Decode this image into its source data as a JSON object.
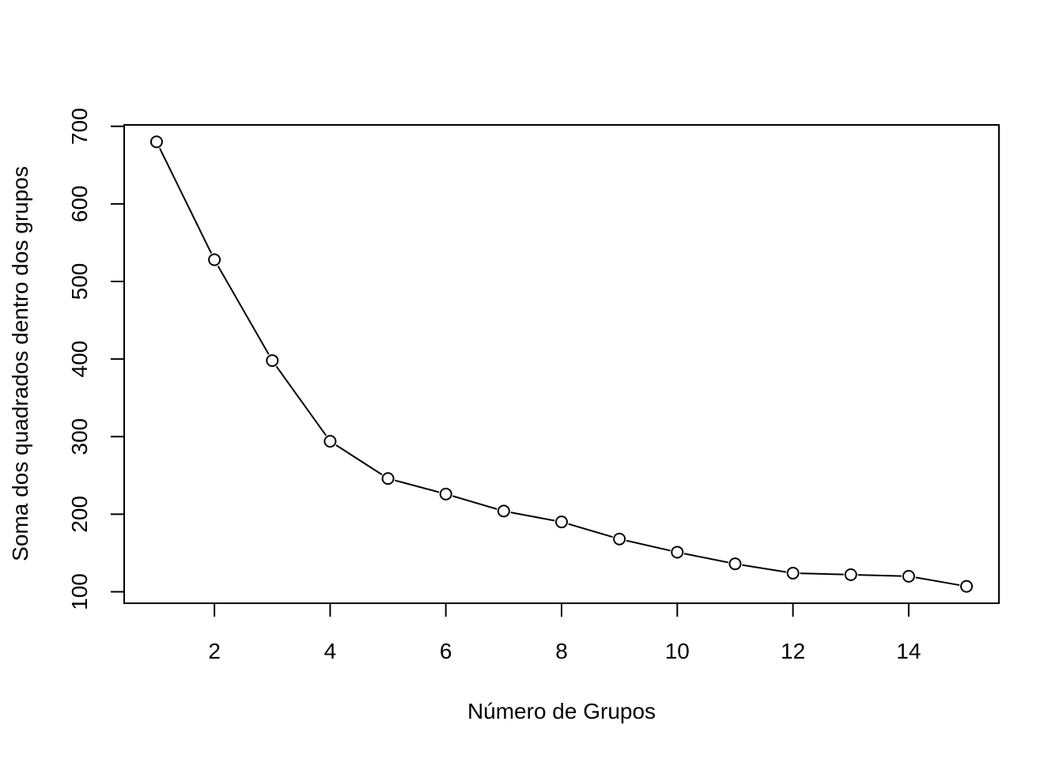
{
  "chart_data": {
    "type": "line",
    "title": "",
    "xlabel": "Número de Grupos",
    "ylabel": "Soma dos quadrados dentro dos grupos",
    "x": [
      1,
      2,
      3,
      4,
      5,
      6,
      7,
      8,
      9,
      10,
      11,
      12,
      13,
      14,
      15
    ],
    "series": [
      {
        "name": "Soma dos quadrados dentro dos grupos",
        "values": [
          680,
          528,
          398,
          294,
          246,
          226,
          204,
          190,
          168,
          151,
          136,
          124,
          122,
          120,
          107
        ]
      }
    ],
    "xlim": [
      0.44,
      15.56
    ],
    "ylim": [
      85.2,
      701.8
    ],
    "xticks": [
      2,
      4,
      6,
      8,
      10,
      12,
      14
    ],
    "xtick_labels": [
      "2",
      "4",
      "6",
      "8",
      "10",
      "12",
      "14"
    ],
    "yticks": [
      100,
      200,
      300,
      400,
      500,
      600,
      700
    ],
    "ytick_labels": [
      "100",
      "200",
      "300",
      "400",
      "500",
      "600",
      "700"
    ],
    "marker": "open-circle",
    "grid": false,
    "line_color": "#000000"
  }
}
